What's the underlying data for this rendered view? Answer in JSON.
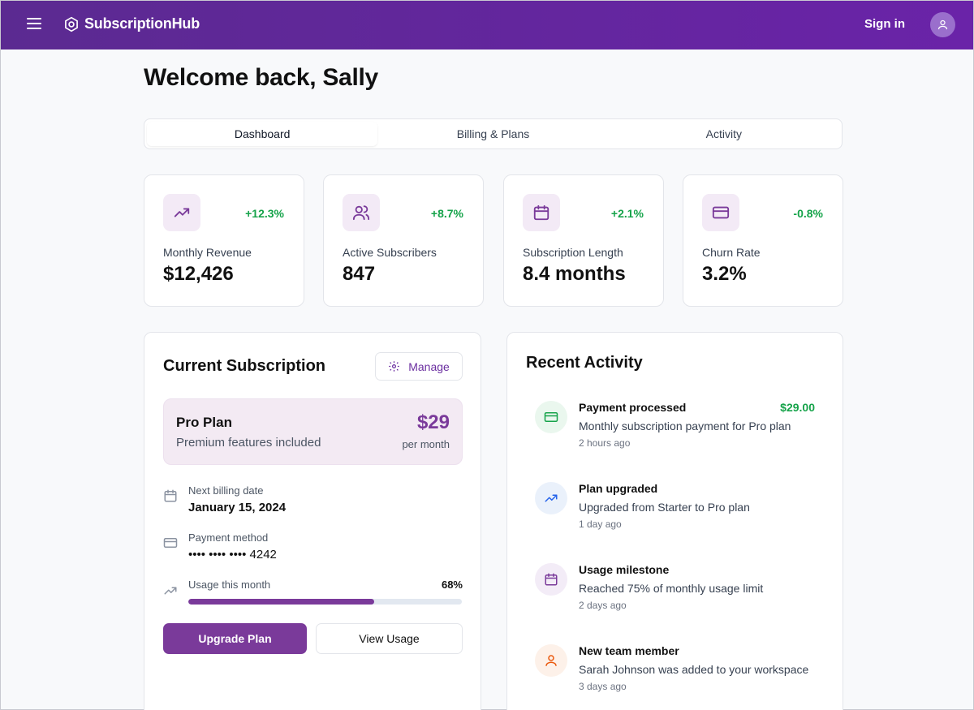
{
  "header": {
    "app_name": "SubscriptionHub",
    "sign_in": "Sign in"
  },
  "welcome": "Welcome back, Sally",
  "tabs": [
    {
      "label": "Dashboard",
      "active": true
    },
    {
      "label": "Billing & Plans",
      "active": false
    },
    {
      "label": "Activity",
      "active": false
    }
  ],
  "stats": [
    {
      "label": "Monthly Revenue",
      "value": "$12,426",
      "delta": "+12.3%",
      "icon": "trending-up-icon"
    },
    {
      "label": "Active Subscribers",
      "value": "847",
      "delta": "+8.7%",
      "icon": "users-icon"
    },
    {
      "label": "Subscription Length",
      "value": "8.4 months",
      "delta": "+2.1%",
      "icon": "calendar-icon"
    },
    {
      "label": "Churn Rate",
      "value": "3.2%",
      "delta": "-0.8%",
      "icon": "credit-card-icon"
    }
  ],
  "subscription": {
    "title": "Current Subscription",
    "manage_label": "Manage",
    "plan": {
      "name": "Pro Plan",
      "description": "Premium features included",
      "price": "$29",
      "period": "per month"
    },
    "next_billing_label": "Next billing date",
    "next_billing_value": "January 15, 2024",
    "payment_label": "Payment method",
    "payment_value": "•••• •••• •••• 4242",
    "usage_label": "Usage this month",
    "usage_percent": "68%",
    "usage_fraction": 0.68,
    "upgrade_label": "Upgrade Plan",
    "view_usage_label": "View Usage"
  },
  "activity": {
    "title": "Recent Activity",
    "items": [
      {
        "title": "Payment processed",
        "amount": "$29.00",
        "desc": "Monthly subscription payment for Pro plan",
        "time": "2 hours ago",
        "icon": "credit-card-icon"
      },
      {
        "title": "Plan upgraded",
        "amount": "",
        "desc": "Upgraded from Starter to Pro plan",
        "time": "1 day ago",
        "icon": "trending-up-icon"
      },
      {
        "title": "Usage milestone",
        "amount": "",
        "desc": "Reached 75% of monthly usage limit",
        "time": "2 days ago",
        "icon": "calendar-icon"
      },
      {
        "title": "New team member",
        "amount": "",
        "desc": "Sarah Johnson was added to your workspace",
        "time": "3 days ago",
        "icon": "user-icon"
      }
    ]
  },
  "colors": {
    "brand": "#6a23a8",
    "accent": "#7a3a9a",
    "positive": "#16a34a"
  }
}
